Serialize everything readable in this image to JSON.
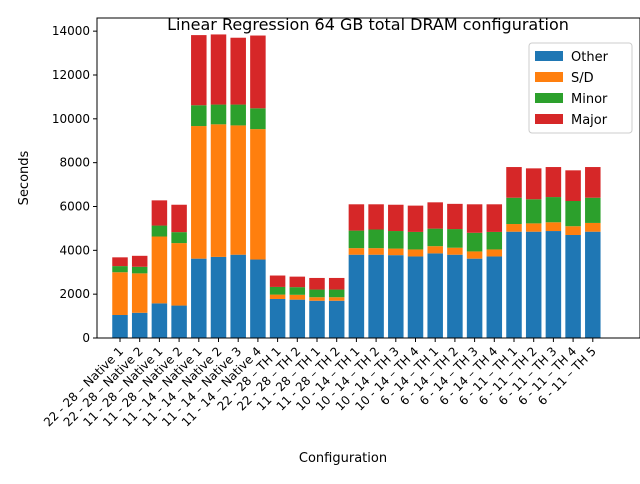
{
  "chart_data": {
    "type": "bar",
    "stacked": true,
    "title": "Linear Regression 64 GB total DRAM configuration",
    "xlabel": "Configuration",
    "ylabel": "Seconds",
    "ylim": [
      0,
      14600
    ],
    "yticks": [
      0,
      2000,
      4000,
      6000,
      8000,
      10000,
      12000,
      14000
    ],
    "legend_position": "top-right",
    "categories": [
      "22 - 28 – Native 1",
      "22 - 28 – Native 2",
      "11 - 28 – Native 1",
      "11 - 28 – Native 2",
      "11 - 14 – Native 1",
      "11 - 14 – Native 2",
      "11 - 14 – Native 3",
      "11 - 14 – Native 4",
      "22 - 28 – TH 1",
      "22 - 28 – TH 2",
      "11 - 28 – TH 1",
      "11 - 28 – TH 2",
      "10 - 14 – TH 1",
      "10 - 14 – TH 2",
      "10 - 14 – TH 3",
      "10 - 14 – TH 4",
      "6 - 14 – TH 1",
      "6 - 14 – TH 2",
      "6 - 14 – TH 3",
      "6 - 14 – TH 4",
      "6 - 11 – TH 1",
      "6 - 11 – TH 2",
      "6 - 11 – TH 3",
      "6 - 11 – TH 4",
      "6 - 11 – TH 5"
    ],
    "series": [
      {
        "name": "Other",
        "color": "#1f77b4",
        "values": [
          1050,
          1150,
          1580,
          1480,
          3620,
          3700,
          3800,
          3580,
          1780,
          1750,
          1700,
          1700,
          3800,
          3800,
          3780,
          3720,
          3860,
          3800,
          3620,
          3720,
          4850,
          4850,
          4880,
          4700,
          4850
        ]
      },
      {
        "name": "S/D",
        "color": "#ff7f0e",
        "values": [
          1950,
          1800,
          3050,
          2850,
          6050,
          6050,
          5900,
          5950,
          200,
          220,
          160,
          160,
          300,
          300,
          300,
          320,
          330,
          320,
          330,
          320,
          350,
          380,
          400,
          400,
          400
        ]
      },
      {
        "name": "Minor",
        "color": "#2ca02c",
        "values": [
          280,
          300,
          500,
          500,
          950,
          900,
          950,
          950,
          350,
          350,
          350,
          350,
          800,
          850,
          800,
          800,
          800,
          850,
          850,
          800,
          1200,
          1100,
          1150,
          1150,
          1150
        ]
      },
      {
        "name": "Major",
        "color": "#d62728",
        "values": [
          400,
          500,
          1150,
          1250,
          3200,
          3200,
          3050,
          3320,
          520,
          480,
          530,
          530,
          1200,
          1150,
          1200,
          1200,
          1200,
          1150,
          1300,
          1260,
          1400,
          1410,
          1370,
          1400,
          1400
        ]
      }
    ]
  }
}
